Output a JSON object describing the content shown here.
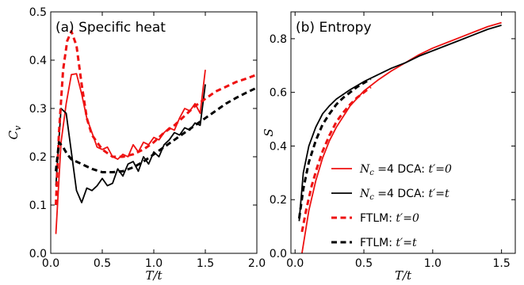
{
  "colors": {
    "red": "#ee1111",
    "black": "#000000"
  },
  "chart_data": [
    {
      "type": "line",
      "title": "(a) Specific heat",
      "xlabel": "T/t",
      "ylabel": "C_v",
      "xlim": [
        0.0,
        2.0
      ],
      "ylim": [
        0.0,
        0.5
      ],
      "xticks": [
        "0.0",
        "0.5",
        "1.0",
        "1.5",
        "2.0"
      ],
      "yticks": [
        "0.0",
        "0.1",
        "0.2",
        "0.3",
        "0.4",
        "0.5"
      ],
      "legend": "none",
      "series": [
        {
          "label": "Nc=4 DCA: t'=0",
          "color": "red",
          "dash": "solid",
          "x": [
            0.05,
            0.1,
            0.15,
            0.2,
            0.25,
            0.3,
            0.35,
            0.4,
            0.45,
            0.5,
            0.55,
            0.6,
            0.65,
            0.7,
            0.75,
            0.8,
            0.85,
            0.9,
            0.95,
            1.0,
            1.05,
            1.1,
            1.15,
            1.2,
            1.25,
            1.3,
            1.35,
            1.4,
            1.45,
            1.5
          ],
          "y": [
            0.04,
            0.23,
            0.31,
            0.37,
            0.372,
            0.33,
            0.28,
            0.25,
            0.22,
            0.215,
            0.22,
            0.2,
            0.195,
            0.205,
            0.2,
            0.225,
            0.21,
            0.23,
            0.225,
            0.24,
            0.235,
            0.25,
            0.26,
            0.255,
            0.28,
            0.3,
            0.295,
            0.31,
            0.29,
            0.38
          ]
        },
        {
          "label": "Nc=4 DCA: t'=t",
          "color": "black",
          "dash": "solid",
          "x": [
            0.05,
            0.1,
            0.15,
            0.2,
            0.25,
            0.3,
            0.35,
            0.4,
            0.45,
            0.5,
            0.55,
            0.6,
            0.65,
            0.7,
            0.75,
            0.8,
            0.85,
            0.9,
            0.95,
            1.0,
            1.05,
            1.1,
            1.15,
            1.2,
            1.25,
            1.3,
            1.35,
            1.4,
            1.45,
            1.5
          ],
          "y": [
            0.14,
            0.3,
            0.29,
            0.21,
            0.13,
            0.105,
            0.135,
            0.13,
            0.14,
            0.155,
            0.14,
            0.145,
            0.175,
            0.16,
            0.185,
            0.19,
            0.17,
            0.2,
            0.185,
            0.21,
            0.2,
            0.225,
            0.235,
            0.25,
            0.245,
            0.26,
            0.255,
            0.27,
            0.265,
            0.35
          ]
        },
        {
          "label": "FTLM: t'=0",
          "color": "red",
          "dash": "dashed",
          "x": [
            0.05,
            0.08,
            0.12,
            0.16,
            0.2,
            0.25,
            0.3,
            0.35,
            0.4,
            0.5,
            0.6,
            0.7,
            0.8,
            0.9,
            1.0,
            1.1,
            1.2,
            1.3,
            1.4,
            1.5,
            1.6,
            1.7,
            1.8,
            1.9,
            2.0
          ],
          "y": [
            0.1,
            0.25,
            0.38,
            0.44,
            0.46,
            0.43,
            0.35,
            0.28,
            0.245,
            0.215,
            0.2,
            0.2,
            0.205,
            0.215,
            0.23,
            0.25,
            0.265,
            0.285,
            0.305,
            0.32,
            0.335,
            0.345,
            0.355,
            0.362,
            0.37
          ]
        },
        {
          "label": "FTLM: t'=t",
          "color": "black",
          "dash": "dashed",
          "x": [
            0.05,
            0.08,
            0.12,
            0.16,
            0.2,
            0.3,
            0.4,
            0.5,
            0.6,
            0.7,
            0.8,
            0.9,
            1.0,
            1.1,
            1.2,
            1.3,
            1.4,
            1.5,
            1.6,
            1.7,
            1.8,
            1.9,
            2.0
          ],
          "y": [
            0.17,
            0.23,
            0.22,
            0.205,
            0.195,
            0.185,
            0.175,
            0.168,
            0.168,
            0.17,
            0.178,
            0.19,
            0.205,
            0.22,
            0.235,
            0.25,
            0.265,
            0.28,
            0.295,
            0.31,
            0.322,
            0.333,
            0.343
          ]
        }
      ]
    },
    {
      "type": "line",
      "title": "(b) Entropy",
      "xlabel": "T/t",
      "ylabel": "S",
      "xlim": [
        -0.03,
        1.6
      ],
      "ylim": [
        0.0,
        0.9
      ],
      "xticks": [
        "0.0",
        "0.5",
        "1.0",
        "1.5"
      ],
      "yticks": [
        "0.0",
        "0.2",
        "0.4",
        "0.6",
        "0.8"
      ],
      "legend": "lower-right",
      "series": [
        {
          "label": "Nc=4 DCA: t'=0",
          "color": "red",
          "dash": "solid",
          "x": [
            0.05,
            0.1,
            0.15,
            0.2,
            0.25,
            0.3,
            0.4,
            0.5,
            0.6,
            0.7,
            0.8,
            0.9,
            1.0,
            1.1,
            1.2,
            1.3,
            1.4,
            1.5
          ],
          "y": [
            0.0,
            0.16,
            0.27,
            0.355,
            0.42,
            0.47,
            0.55,
            0.605,
            0.645,
            0.68,
            0.71,
            0.74,
            0.765,
            0.785,
            0.805,
            0.825,
            0.845,
            0.86
          ]
        },
        {
          "label": "Nc=4 DCA: t'=t",
          "color": "black",
          "dash": "solid",
          "x": [
            0.03,
            0.06,
            0.1,
            0.15,
            0.2,
            0.25,
            0.3,
            0.4,
            0.5,
            0.6,
            0.7,
            0.8,
            0.9,
            1.0,
            1.1,
            1.2,
            1.3,
            1.4,
            1.5
          ],
          "y": [
            0.12,
            0.3,
            0.4,
            0.47,
            0.52,
            0.55,
            0.575,
            0.61,
            0.64,
            0.665,
            0.69,
            0.71,
            0.735,
            0.755,
            0.775,
            0.795,
            0.815,
            0.835,
            0.85
          ]
        },
        {
          "label": "FTLM: t'=0",
          "color": "red",
          "dash": "dashed",
          "x": [
            0.05,
            0.08,
            0.12,
            0.16,
            0.2,
            0.25,
            0.3,
            0.35,
            0.4,
            0.45,
            0.5,
            0.55
          ],
          "y": [
            0.08,
            0.16,
            0.25,
            0.32,
            0.38,
            0.44,
            0.49,
            0.525,
            0.555,
            0.58,
            0.6,
            0.62
          ]
        },
        {
          "label": "FTLM: t'=t",
          "color": "black",
          "dash": "dashed",
          "x": [
            0.03,
            0.06,
            0.1,
            0.15,
            0.2,
            0.25,
            0.3,
            0.35,
            0.4,
            0.45,
            0.5,
            0.55
          ],
          "y": [
            0.13,
            0.24,
            0.34,
            0.42,
            0.48,
            0.52,
            0.555,
            0.58,
            0.6,
            0.62,
            0.635,
            0.65
          ]
        }
      ]
    }
  ],
  "legend": [
    {
      "prefix": "N",
      "sub": "c",
      "suffix_math": " =4",
      "text": " DCA: ",
      "cond": "t′=0",
      "color": "red",
      "dash": "solid"
    },
    {
      "prefix": "N",
      "sub": "c",
      "suffix_math": " =4",
      "text": " DCA: ",
      "cond": "t′=t",
      "color": "black",
      "dash": "solid"
    },
    {
      "prefix": "",
      "sub": "",
      "suffix_math": "",
      "text": "FTLM: ",
      "cond": "t′=0",
      "color": "red",
      "dash": "dashed"
    },
    {
      "prefix": "",
      "sub": "",
      "suffix_math": "",
      "text": "FTLM: ",
      "cond": "t′=t",
      "color": "black",
      "dash": "dashed"
    }
  ]
}
